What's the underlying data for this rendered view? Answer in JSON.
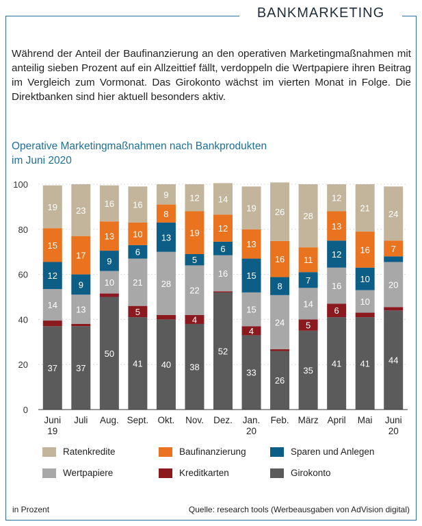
{
  "header": {
    "title": "BANKMARKETING"
  },
  "intro": {
    "text": "Während der Anteil der Baufinanzierung an den operativen Marketingmaßnahmen mit anteilig sieben Prozent auf ein Allzeittief fällt, verdoppeln die Wertpapiere ihren Beitrag im Vergleich zum Vormonat. Das Girokonto wächst im vierten Monat in Folge. Die Direktbanken sind hier aktuell besonders aktiv."
  },
  "chart_title": {
    "line1": "Operative Marketingmaßnahmen nach Bankprodukten",
    "line2": "im Juni 2020"
  },
  "colors": {
    "Girokonto": "#5b5b5b",
    "Kreditkarten": "#8b1a1f",
    "Wertpapiere": "#a8a8a8",
    "Sparen und Anlegen": "#0c5e87",
    "Baufinanzierung": "#e9731f",
    "Ratenkredite": "#c2b59c"
  },
  "chart_data": {
    "type": "bar",
    "stacked": true,
    "categories": [
      [
        "Juni",
        "19"
      ],
      [
        "Juli"
      ],
      [
        "Aug."
      ],
      [
        "Sept."
      ],
      [
        "Okt."
      ],
      [
        "Nov."
      ],
      [
        "Dez."
      ],
      [
        "Jan.",
        "20"
      ],
      [
        "Feb."
      ],
      [
        "März"
      ],
      [
        "April"
      ],
      [
        "Mai"
      ],
      [
        "Juni",
        "20"
      ]
    ],
    "ylim": [
      0,
      100
    ],
    "yticks": [
      0,
      20,
      40,
      60,
      80,
      100
    ],
    "grid": true,
    "legend_position": "bottom",
    "series": [
      {
        "name": "Girokonto",
        "values": [
          37,
          37,
          50,
          41,
          40,
          38,
          52,
          33,
          26,
          35,
          41,
          41,
          44
        ],
        "labels": [
          "37",
          "37",
          "50",
          "41",
          "40",
          "38",
          "52",
          "33",
          "26",
          "35",
          "41",
          "41",
          "44"
        ]
      },
      {
        "name": "Kreditkarten",
        "values": [
          2.5,
          1,
          1.5,
          5,
          2,
          4,
          0.5,
          4,
          0.8,
          5,
          6,
          2,
          1.5
        ],
        "labels": [
          "",
          "",
          "",
          "5",
          "",
          "4",
          "",
          "4",
          "",
          "5",
          "6",
          "",
          ""
        ]
      },
      {
        "name": "Wertpapiere",
        "values": [
          14,
          13,
          10,
          21,
          28,
          22,
          16,
          15,
          24,
          14,
          16,
          10,
          20
        ],
        "labels": [
          "14",
          "13",
          "10",
          "21",
          "28",
          "22",
          "16",
          "15",
          "24",
          "14",
          "16",
          "10",
          "20"
        ]
      },
      {
        "name": "Sparen und Anlegen",
        "values": [
          12,
          9,
          9,
          6,
          13,
          5,
          6,
          15,
          8,
          7,
          12,
          10,
          2.5
        ],
        "labels": [
          "12",
          "9",
          "9",
          "6",
          "13",
          "5",
          "6",
          "15",
          "8",
          "7",
          "12",
          "10",
          ""
        ]
      },
      {
        "name": "Baufinanzierung",
        "values": [
          15,
          17,
          13,
          10,
          8,
          19,
          12,
          13,
          16,
          11,
          13,
          16,
          7
        ],
        "labels": [
          "15",
          "17",
          "13",
          "10",
          "8",
          "19",
          "12",
          "13",
          "16",
          "11",
          "13",
          "16",
          "7"
        ]
      },
      {
        "name": "Ratenkredite",
        "values": [
          19,
          23,
          16,
          16,
          9,
          12,
          14,
          19,
          26,
          28,
          12,
          21,
          24
        ],
        "labels": [
          "19",
          "23",
          "16",
          "16",
          "9",
          "12",
          "14",
          "19",
          "26",
          "28",
          "12",
          "21",
          "24"
        ]
      }
    ]
  },
  "legend": {
    "items": [
      "Ratenkredite",
      "Baufinanzierung",
      "Sparen und Anlegen",
      "Wertpapiere",
      "Kreditkarten",
      "Girokonto"
    ]
  },
  "footer": {
    "unit": "in Prozent",
    "source": "Quelle: research tools (Werbeausgaben von AdVision digital)"
  }
}
